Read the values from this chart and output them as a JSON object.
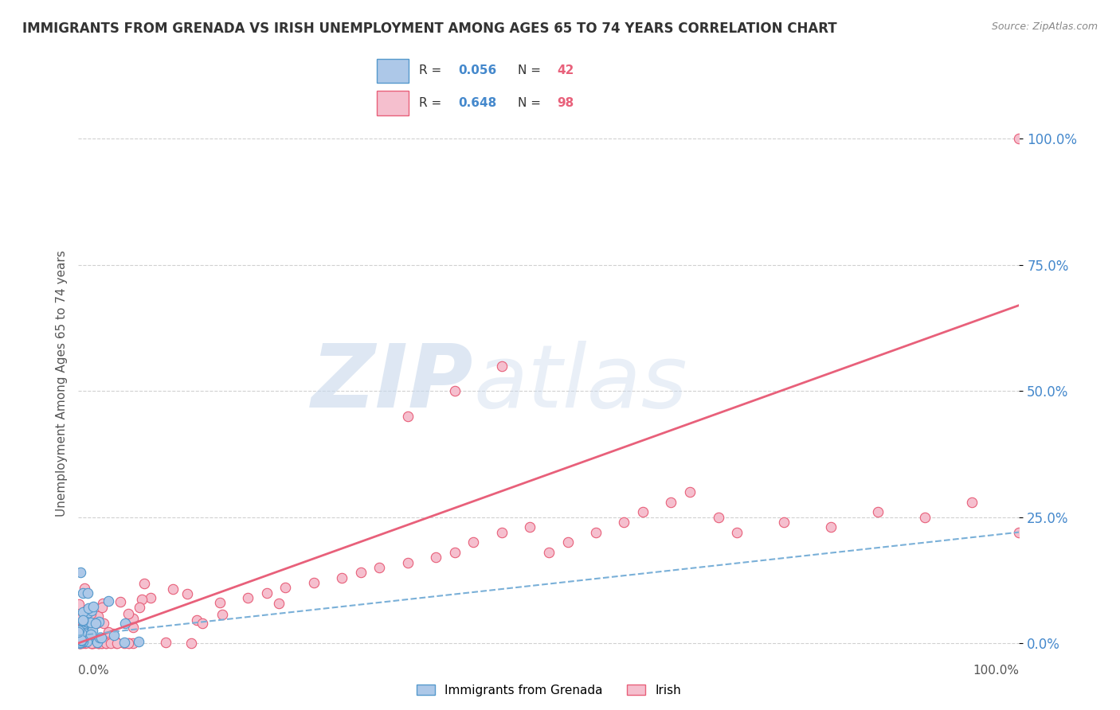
{
  "title": "IMMIGRANTS FROM GRENADA VS IRISH UNEMPLOYMENT AMONG AGES 65 TO 74 YEARS CORRELATION CHART",
  "source": "Source: ZipAtlas.com",
  "xlabel_bottom_left": "0.0%",
  "xlabel_bottom_right": "100.0%",
  "ylabel_label": "Unemployment Among Ages 65 to 74 years",
  "ytick_labels": [
    "0.0%",
    "25.0%",
    "50.0%",
    "75.0%",
    "100.0%"
  ],
  "ytick_values": [
    0,
    25,
    50,
    75,
    100
  ],
  "xlim": [
    0,
    100
  ],
  "ylim": [
    -2,
    105
  ],
  "series": [
    {
      "name": "Immigrants from Grenada",
      "R": 0.056,
      "N": 42,
      "color": "#adc8e8",
      "edge_color": "#5599cc",
      "trend_color": "#7ab0d8",
      "trend_style": "--",
      "trend_x": [
        0,
        100
      ],
      "trend_y": [
        1.5,
        22
      ]
    },
    {
      "name": "Irish",
      "R": 0.648,
      "N": 98,
      "color": "#f5bfce",
      "edge_color": "#e8607a",
      "trend_color": "#e8607a",
      "trend_style": "-",
      "trend_x": [
        0,
        100
      ],
      "trend_y": [
        0,
        67
      ]
    }
  ],
  "legend_entries": [
    {
      "label_r": "R = 0.056",
      "label_n": "N = 42",
      "color": "#adc8e8",
      "edge_color": "#5599cc"
    },
    {
      "label_r": "R = 0.648",
      "label_n": "N = 98",
      "color": "#f5bfce",
      "edge_color": "#e8607a"
    }
  ],
  "legend_bottom": [
    "Immigrants from Grenada",
    "Irish"
  ],
  "watermark_zip": "ZIP",
  "watermark_atlas": "atlas",
  "watermark_color_zip": "#c8d8ec",
  "watermark_color_atlas": "#c8d8ec",
  "background_color": "#ffffff",
  "grid_color": "#cccccc",
  "title_color": "#333333",
  "axis_label_color": "#555555",
  "ytick_color": "#4488cc",
  "r_value_color": "#4488cc",
  "n_value_color": "#e8607a",
  "marker_size": 80,
  "linewidths": 0.8
}
